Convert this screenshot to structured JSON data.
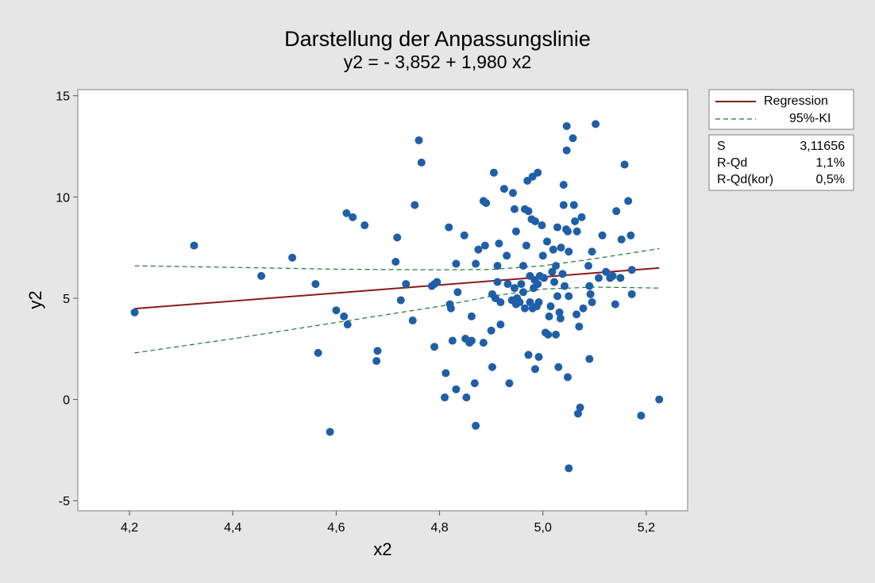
{
  "chart_data": {
    "type": "scatter",
    "title": "Darstellung der Anpassungslinie",
    "subtitle": "y2 = - 3,852 + 1,980 x2",
    "xlabel": "x2",
    "ylabel": "y2",
    "xlim": [
      4.1,
      5.28
    ],
    "ylim": [
      -5.5,
      15.3
    ],
    "xticks": [
      4.2,
      4.4,
      4.6,
      4.8,
      5.0,
      5.2
    ],
    "xtick_labels": [
      "4,2",
      "4,4",
      "4,6",
      "4,8",
      "5,0",
      "5,2"
    ],
    "yticks": [
      -5,
      0,
      5,
      10,
      15
    ],
    "ytick_labels": [
      "-5",
      "0",
      "5",
      "10",
      "15"
    ],
    "grid": false,
    "legend_position": "right",
    "colors": {
      "points": "#1f5fa8",
      "regression": "#8b1a1a",
      "ci": "#1a7a2a",
      "plot_bg": "#ffffff",
      "page_bg": "#e6e6e6"
    },
    "regression": {
      "name": "Regression",
      "intercept": -3.852,
      "slope": 1.98,
      "x_range": [
        4.21,
        5.225
      ]
    },
    "ci": {
      "name": "95%-KI",
      "upper": [
        [
          4.21,
          6.6
        ],
        [
          4.4,
          6.52
        ],
        [
          4.6,
          6.43
        ],
        [
          4.8,
          6.4
        ],
        [
          4.9,
          6.42
        ],
        [
          5.0,
          6.6
        ],
        [
          5.1,
          6.95
        ],
        [
          5.225,
          7.45
        ]
      ],
      "lower": [
        [
          4.21,
          2.3
        ],
        [
          4.4,
          3.0
        ],
        [
          4.6,
          3.8
        ],
        [
          4.8,
          4.6
        ],
        [
          4.9,
          5.1
        ],
        [
          5.0,
          5.45
        ],
        [
          5.1,
          5.55
        ],
        [
          5.225,
          5.5
        ]
      ]
    },
    "legend": [
      "Regression",
      "95%-KI"
    ],
    "stats": [
      {
        "label": "S",
        "value": "3,11656"
      },
      {
        "label": "R-Qd",
        "value": "1,1%"
      },
      {
        "label": "R-Qd(kor)",
        "value": "0,5%"
      }
    ],
    "points": [
      [
        4.21,
        4.3
      ],
      [
        4.325,
        7.6
      ],
      [
        4.455,
        6.1
      ],
      [
        4.515,
        7.0
      ],
      [
        4.56,
        5.7
      ],
      [
        4.565,
        2.3
      ],
      [
        4.588,
        -1.6
      ],
      [
        4.6,
        4.4
      ],
      [
        4.615,
        4.1
      ],
      [
        4.62,
        9.2
      ],
      [
        4.622,
        3.7
      ],
      [
        4.632,
        9.0
      ],
      [
        4.655,
        8.6
      ],
      [
        4.678,
        1.9
      ],
      [
        4.68,
        2.4
      ],
      [
        4.715,
        6.8
      ],
      [
        4.718,
        8.0
      ],
      [
        4.725,
        4.9
      ],
      [
        4.735,
        5.7
      ],
      [
        4.748,
        3.9
      ],
      [
        4.752,
        9.6
      ],
      [
        4.76,
        12.8
      ],
      [
        4.765,
        11.7
      ],
      [
        4.785,
        5.6
      ],
      [
        4.79,
        5.7
      ],
      [
        4.795,
        5.8
      ],
      [
        4.79,
        2.6
      ],
      [
        4.81,
        0.1
      ],
      [
        4.812,
        1.3
      ],
      [
        4.82,
        4.7
      ],
      [
        4.822,
        4.5
      ],
      [
        4.818,
        8.5
      ],
      [
        4.825,
        2.9
      ],
      [
        4.832,
        6.7
      ],
      [
        4.835,
        5.3
      ],
      [
        4.832,
        0.5
      ],
      [
        4.848,
        8.1
      ],
      [
        4.85,
        3.0
      ],
      [
        4.852,
        0.1
      ],
      [
        4.858,
        2.8
      ],
      [
        4.862,
        2.9
      ],
      [
        4.862,
        4.1
      ],
      [
        4.868,
        0.8
      ],
      [
        4.87,
        6.7
      ],
      [
        4.875,
        7.4
      ],
      [
        4.87,
        -1.3
      ],
      [
        4.885,
        9.8
      ],
      [
        4.89,
        9.7
      ],
      [
        4.888,
        7.6
      ],
      [
        4.885,
        2.8
      ],
      [
        4.9,
        3.4
      ],
      [
        4.902,
        5.2
      ],
      [
        4.905,
        11.2
      ],
      [
        4.902,
        1.6
      ],
      [
        4.908,
        5.0
      ],
      [
        4.912,
        5.8
      ],
      [
        4.912,
        6.6
      ],
      [
        4.915,
        7.7
      ],
      [
        4.918,
        4.8
      ],
      [
        4.918,
        3.7
      ],
      [
        4.925,
        10.4
      ],
      [
        4.93,
        7.1
      ],
      [
        4.932,
        5.7
      ],
      [
        4.935,
        0.8
      ],
      [
        4.94,
        4.9
      ],
      [
        4.942,
        10.2
      ],
      [
        4.945,
        5.5
      ],
      [
        4.945,
        9.4
      ],
      [
        4.948,
        8.3
      ],
      [
        4.948,
        4.7
      ],
      [
        4.95,
        5.0
      ],
      [
        4.955,
        4.8
      ],
      [
        4.958,
        5.7
      ],
      [
        4.962,
        6.6
      ],
      [
        4.962,
        5.3
      ],
      [
        4.965,
        4.5
      ],
      [
        4.965,
        9.4
      ],
      [
        4.968,
        7.6
      ],
      [
        4.97,
        10.8
      ],
      [
        4.972,
        2.2
      ],
      [
        4.972,
        9.3
      ],
      [
        4.975,
        6.1
      ],
      [
        4.975,
        4.8
      ],
      [
        4.978,
        8.9
      ],
      [
        4.98,
        4.5
      ],
      [
        4.98,
        11.0
      ],
      [
        4.982,
        5.5
      ],
      [
        4.984,
        5.9
      ],
      [
        4.985,
        8.8
      ],
      [
        4.985,
        1.5
      ],
      [
        4.988,
        4.6
      ],
      [
        4.99,
        11.2
      ],
      [
        4.99,
        5.7
      ],
      [
        4.992,
        4.8
      ],
      [
        4.992,
        2.1
      ],
      [
        4.994,
        6.1
      ],
      [
        4.998,
        8.6
      ],
      [
        5.0,
        7.1
      ],
      [
        5.002,
        6.0
      ],
      [
        5.005,
        3.3
      ],
      [
        5.008,
        7.8
      ],
      [
        5.01,
        3.2
      ],
      [
        5.012,
        4.1
      ],
      [
        5.015,
        4.6
      ],
      [
        5.018,
        6.3
      ],
      [
        5.02,
        7.4
      ],
      [
        5.022,
        5.8
      ],
      [
        5.025,
        3.2
      ],
      [
        5.025,
        6.6
      ],
      [
        5.028,
        8.5
      ],
      [
        5.028,
        5.1
      ],
      [
        5.03,
        1.6
      ],
      [
        5.032,
        4.3
      ],
      [
        5.034,
        4.0
      ],
      [
        5.035,
        7.5
      ],
      [
        5.038,
        6.2
      ],
      [
        5.04,
        10.6
      ],
      [
        5.04,
        9.6
      ],
      [
        5.042,
        5.6
      ],
      [
        5.045,
        8.4
      ],
      [
        5.046,
        13.5
      ],
      [
        5.046,
        12.3
      ],
      [
        5.048,
        1.1
      ],
      [
        5.048,
        8.3
      ],
      [
        5.05,
        7.3
      ],
      [
        5.05,
        -3.4
      ],
      [
        5.05,
        5.1
      ],
      [
        5.058,
        12.9
      ],
      [
        5.06,
        9.6
      ],
      [
        5.062,
        8.8
      ],
      [
        5.065,
        4.2
      ],
      [
        5.066,
        8.3
      ],
      [
        5.068,
        -0.7
      ],
      [
        5.07,
        3.6
      ],
      [
        5.072,
        -0.4
      ],
      [
        5.075,
        9.0
      ],
      [
        5.078,
        4.5
      ],
      [
        5.088,
        6.6
      ],
      [
        5.09,
        2.0
      ],
      [
        5.09,
        5.6
      ],
      [
        5.092,
        5.2
      ],
      [
        5.095,
        4.8
      ],
      [
        5.095,
        7.3
      ],
      [
        5.102,
        13.6
      ],
      [
        5.108,
        6.0
      ],
      [
        5.115,
        8.1
      ],
      [
        5.122,
        6.3
      ],
      [
        5.13,
        6.0
      ],
      [
        5.135,
        6.1
      ],
      [
        5.14,
        4.7
      ],
      [
        5.142,
        9.3
      ],
      [
        5.15,
        6.0
      ],
      [
        5.152,
        7.9
      ],
      [
        5.158,
        11.6
      ],
      [
        5.165,
        9.8
      ],
      [
        5.17,
        8.1
      ],
      [
        5.172,
        6.4
      ],
      [
        5.172,
        5.2
      ],
      [
        5.19,
        -0.8
      ],
      [
        5.225,
        0.0
      ]
    ]
  }
}
